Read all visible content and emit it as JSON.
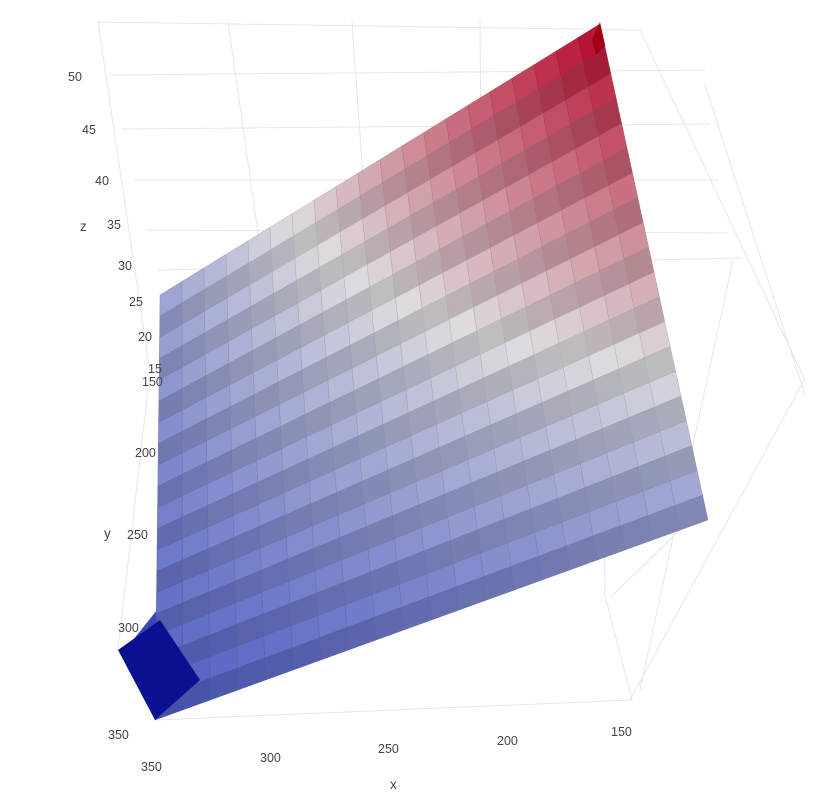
{
  "chart_data": {
    "type": "surface",
    "colorscale": "coolwarm",
    "colors": {
      "low": "#3b4cc0",
      "mid": "#dddddd",
      "high": "#b40426",
      "low_dark": "#0a1190",
      "high_dark": "#a00012"
    },
    "x": {
      "label": "x",
      "range": [
        150,
        350
      ],
      "ticks": [
        "350",
        "300",
        "250",
        "200",
        "150"
      ]
    },
    "y": {
      "label": "y",
      "range": [
        150,
        350
      ],
      "ticks": [
        "150",
        "200",
        "250",
        "300",
        "350"
      ]
    },
    "z": {
      "label": "z",
      "range": [
        15,
        52
      ],
      "ticks": [
        "15",
        "20",
        "25",
        "30",
        "35",
        "40",
        "45",
        "50"
      ]
    },
    "surface_description_values": {
      "z_at_x150_y150": 52,
      "z_at_x350_y150": 26,
      "z_at_x150_y350": 25,
      "z_at_x350_y350": 17
    },
    "grid": true
  }
}
